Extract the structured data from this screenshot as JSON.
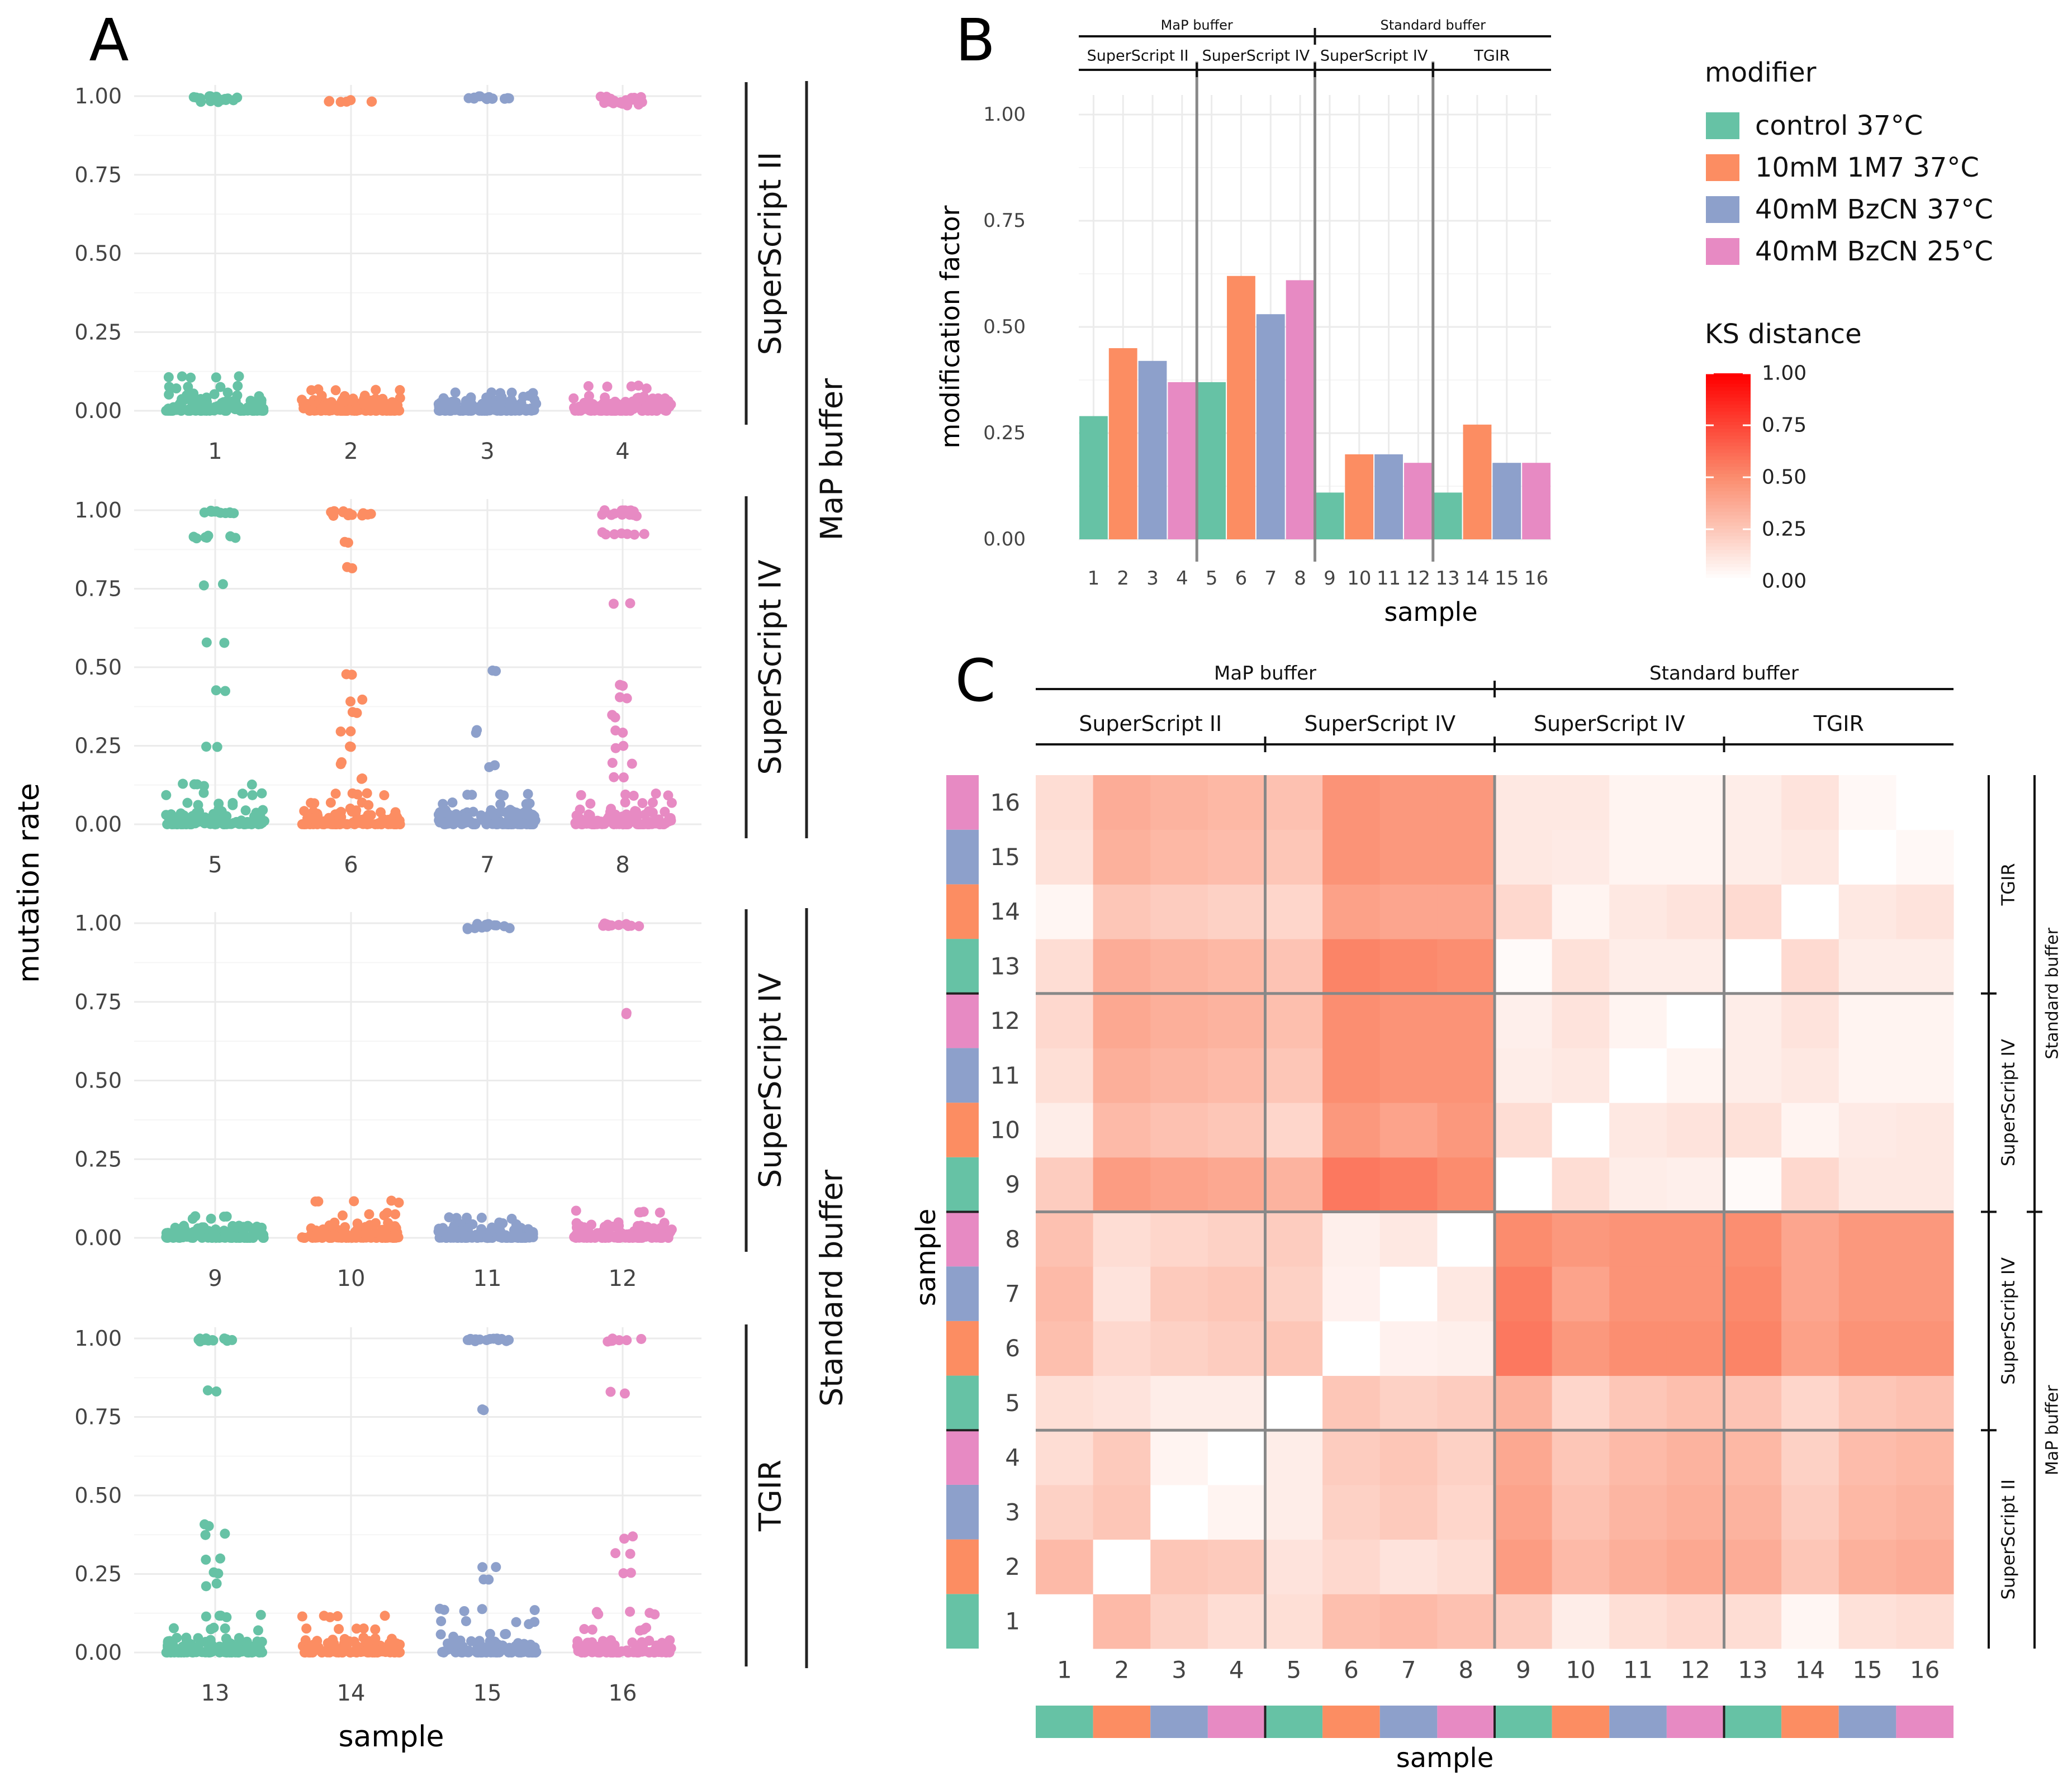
{
  "colors": {
    "modifiers": [
      "#66c2a5",
      "#fc8d62",
      "#8da0cb",
      "#e78ac3"
    ],
    "heat_low": "#ffffff",
    "heat_high": "#ff0000",
    "grid": "#ebebeb",
    "divider": "#888888"
  },
  "panel_a": {
    "letter": "A",
    "ylabel": "mutation rate",
    "xlabel": "sample",
    "yticks": [
      "1.00",
      "0.75",
      "0.50",
      "0.25",
      "0.00"
    ],
    "rows": [
      {
        "samples": [
          "1",
          "2",
          "3",
          "4"
        ],
        "rt_label": "SuperScript II"
      },
      {
        "samples": [
          "5",
          "6",
          "7",
          "8"
        ],
        "rt_label": "SuperScript IV"
      },
      {
        "samples": [
          "9",
          "10",
          "11",
          "12"
        ],
        "rt_label": "SuperScript IV"
      },
      {
        "samples": [
          "13",
          "14",
          "15",
          "16"
        ],
        "rt_label": "TGIR"
      }
    ],
    "buffer_labels": [
      "MaP buffer",
      "Standard buffer"
    ]
  },
  "panel_b": {
    "letter": "B",
    "ylabel": "modification factor",
    "xlabel": "sample",
    "buffer_labels": [
      "MaP buffer",
      "Standard buffer"
    ],
    "rt_labels": [
      "SuperScript II",
      "SuperScript IV",
      "SuperScript IV",
      "TGIR"
    ],
    "yticks": [
      "1.00",
      "0.75",
      "0.50",
      "0.25",
      "0.00"
    ]
  },
  "legend": {
    "modifier_title": "modifier",
    "modifiers": [
      "control 37°C",
      "10mM 1M7 37°C",
      "40mM BzCN 37°C",
      "40mM BzCN 25°C"
    ],
    "ks_title": "KS distance",
    "ks_ticks": [
      "1.00",
      "0.75",
      "0.50",
      "0.25",
      "0.00"
    ]
  },
  "panel_c": {
    "letter": "C",
    "xlabel": "sample",
    "ylabel": "sample",
    "buffer_labels": [
      "MaP buffer",
      "Standard buffer"
    ],
    "rt_labels": [
      "SuperScript II",
      "SuperScript IV",
      "SuperScript IV",
      "TGIR"
    ],
    "right_rt_labels": [
      "TGIR",
      "SuperScript IV",
      "SuperScript IV",
      "SuperScript II"
    ],
    "right_buffer_labels": [
      "Standard buffer",
      "MaP buffer"
    ]
  },
  "chart_data": [
    {
      "type": "scatter",
      "title": "A",
      "xlabel": "sample",
      "ylabel": "mutation rate",
      "ylim": [
        0,
        1
      ],
      "description": "Jittered strip plots of per-nucleotide mutation rate for samples 1-16",
      "series": [
        {
          "sample": 1,
          "values": [
            1.0,
            1.0,
            0.99,
            0.11,
            0.08,
            0.06,
            0.05,
            0.04,
            0.03,
            0.02,
            0.01,
            0.0
          ]
        },
        {
          "sample": 2,
          "values": [
            0.99,
            0.07,
            0.05,
            0.03,
            0.02,
            0.01,
            0.0
          ]
        },
        {
          "sample": 3,
          "values": [
            1.0,
            1.0,
            0.06,
            0.05,
            0.03,
            0.02,
            0.01,
            0.0
          ]
        },
        {
          "sample": 4,
          "values": [
            1.0,
            0.99,
            0.98,
            0.08,
            0.05,
            0.03,
            0.02,
            0.0
          ]
        },
        {
          "sample": 5,
          "values": [
            1.0,
            1.0,
            0.92,
            0.77,
            0.58,
            0.43,
            0.25,
            0.13,
            0.1,
            0.07,
            0.05,
            0.03,
            0.0
          ]
        },
        {
          "sample": 6,
          "values": [
            1.0,
            0.99,
            0.9,
            0.82,
            0.48,
            0.4,
            0.36,
            0.3,
            0.25,
            0.2,
            0.15,
            0.1,
            0.07,
            0.05,
            0.02,
            0.0
          ]
        },
        {
          "sample": 7,
          "values": [
            0.49,
            0.3,
            0.19,
            0.1,
            0.07,
            0.05,
            0.03,
            0.01,
            0.0
          ]
        },
        {
          "sample": 8,
          "values": [
            1.0,
            0.99,
            0.93,
            0.71,
            0.45,
            0.41,
            0.35,
            0.3,
            0.25,
            0.2,
            0.15,
            0.1,
            0.07,
            0.05,
            0.02,
            0.0
          ]
        },
        {
          "sample": 9,
          "values": [
            0.07,
            0.04,
            0.02,
            0.01,
            0.0
          ]
        },
        {
          "sample": 10,
          "values": [
            0.12,
            0.08,
            0.05,
            0.03,
            0.01,
            0.0
          ]
        },
        {
          "sample": 11,
          "values": [
            1.0,
            0.99,
            0.07,
            0.05,
            0.03,
            0.01,
            0.0
          ]
        },
        {
          "sample": 12,
          "values": [
            1.0,
            1.0,
            0.72,
            0.09,
            0.05,
            0.02,
            0.0
          ]
        },
        {
          "sample": 13,
          "values": [
            1.0,
            1.0,
            0.84,
            0.41,
            0.38,
            0.3,
            0.26,
            0.22,
            0.12,
            0.08,
            0.05,
            0.02,
            0.0
          ]
        },
        {
          "sample": 14,
          "values": [
            0.12,
            0.08,
            0.05,
            0.03,
            0.01,
            0.0
          ]
        },
        {
          "sample": 15,
          "values": [
            1.0,
            1.0,
            0.78,
            0.28,
            0.24,
            0.14,
            0.1,
            0.06,
            0.03,
            0.0
          ]
        },
        {
          "sample": 16,
          "values": [
            1.0,
            0.83,
            0.37,
            0.32,
            0.26,
            0.13,
            0.08,
            0.04,
            0.01,
            0.0
          ]
        }
      ]
    },
    {
      "type": "bar",
      "title": "B",
      "xlabel": "sample",
      "ylabel": "modification factor",
      "ylim": [
        0,
        1
      ],
      "categories": [
        "1",
        "2",
        "3",
        "4",
        "5",
        "6",
        "7",
        "8",
        "9",
        "10",
        "11",
        "12",
        "13",
        "14",
        "15",
        "16"
      ],
      "values": [
        0.29,
        0.45,
        0.42,
        0.37,
        0.37,
        0.62,
        0.53,
        0.61,
        0.11,
        0.2,
        0.2,
        0.18,
        0.11,
        0.27,
        0.18,
        0.18
      ],
      "modifier_index": [
        0,
        1,
        2,
        3,
        0,
        1,
        2,
        3,
        0,
        1,
        2,
        3,
        0,
        1,
        2,
        3
      ]
    },
    {
      "type": "heatmap",
      "title": "C",
      "xlabel": "sample",
      "ylabel": "sample",
      "legend_title": "KS distance",
      "zlim": [
        0,
        1
      ],
      "labels": [
        "1",
        "2",
        "3",
        "4",
        "5",
        "6",
        "7",
        "8",
        "9",
        "10",
        "11",
        "12",
        "13",
        "14",
        "15",
        "16"
      ],
      "matrix": [
        [
          0.0,
          0.3,
          0.2,
          0.15,
          0.14,
          0.28,
          0.3,
          0.27,
          0.22,
          0.08,
          0.14,
          0.17,
          0.15,
          0.04,
          0.13,
          0.15
        ],
        [
          0.3,
          0.0,
          0.25,
          0.23,
          0.12,
          0.17,
          0.12,
          0.15,
          0.43,
          0.3,
          0.35,
          0.38,
          0.36,
          0.25,
          0.34,
          0.36
        ],
        [
          0.2,
          0.25,
          0.0,
          0.05,
          0.08,
          0.2,
          0.23,
          0.18,
          0.4,
          0.27,
          0.32,
          0.35,
          0.33,
          0.22,
          0.31,
          0.33
        ],
        [
          0.15,
          0.23,
          0.05,
          0.0,
          0.08,
          0.22,
          0.25,
          0.2,
          0.38,
          0.25,
          0.3,
          0.33,
          0.31,
          0.2,
          0.29,
          0.31
        ],
        [
          0.14,
          0.12,
          0.08,
          0.08,
          0.0,
          0.25,
          0.2,
          0.22,
          0.33,
          0.18,
          0.25,
          0.28,
          0.26,
          0.18,
          0.25,
          0.27
        ],
        [
          0.28,
          0.17,
          0.2,
          0.22,
          0.25,
          0.0,
          0.06,
          0.07,
          0.57,
          0.45,
          0.49,
          0.49,
          0.53,
          0.41,
          0.47,
          0.47
        ],
        [
          0.3,
          0.12,
          0.23,
          0.25,
          0.2,
          0.06,
          0.0,
          0.1,
          0.55,
          0.4,
          0.47,
          0.47,
          0.51,
          0.39,
          0.45,
          0.45
        ],
        [
          0.27,
          0.15,
          0.18,
          0.2,
          0.22,
          0.07,
          0.1,
          0.0,
          0.5,
          0.45,
          0.47,
          0.47,
          0.49,
          0.39,
          0.45,
          0.45
        ],
        [
          0.22,
          0.43,
          0.4,
          0.38,
          0.33,
          0.57,
          0.55,
          0.5,
          0.0,
          0.15,
          0.08,
          0.07,
          0.02,
          0.17,
          0.1,
          0.1
        ],
        [
          0.08,
          0.3,
          0.27,
          0.25,
          0.18,
          0.45,
          0.4,
          0.45,
          0.15,
          0.0,
          0.1,
          0.12,
          0.13,
          0.05,
          0.09,
          0.1
        ],
        [
          0.14,
          0.35,
          0.32,
          0.3,
          0.25,
          0.49,
          0.47,
          0.47,
          0.08,
          0.1,
          0.0,
          0.05,
          0.08,
          0.1,
          0.05,
          0.05
        ],
        [
          0.17,
          0.38,
          0.35,
          0.33,
          0.28,
          0.49,
          0.47,
          0.47,
          0.07,
          0.12,
          0.05,
          0.0,
          0.08,
          0.12,
          0.05,
          0.05
        ],
        [
          0.15,
          0.36,
          0.33,
          0.31,
          0.26,
          0.53,
          0.51,
          0.49,
          0.02,
          0.13,
          0.08,
          0.08,
          0.0,
          0.16,
          0.08,
          0.08
        ],
        [
          0.04,
          0.25,
          0.22,
          0.2,
          0.18,
          0.41,
          0.39,
          0.39,
          0.17,
          0.05,
          0.1,
          0.12,
          0.16,
          0.0,
          0.1,
          0.12
        ],
        [
          0.13,
          0.34,
          0.31,
          0.29,
          0.25,
          0.47,
          0.45,
          0.45,
          0.1,
          0.09,
          0.05,
          0.05,
          0.08,
          0.1,
          0.0,
          0.03
        ],
        [
          0.15,
          0.36,
          0.33,
          0.31,
          0.27,
          0.47,
          0.45,
          0.45,
          0.1,
          0.1,
          0.05,
          0.05,
          0.08,
          0.12,
          0.03,
          0.0
        ]
      ]
    }
  ]
}
